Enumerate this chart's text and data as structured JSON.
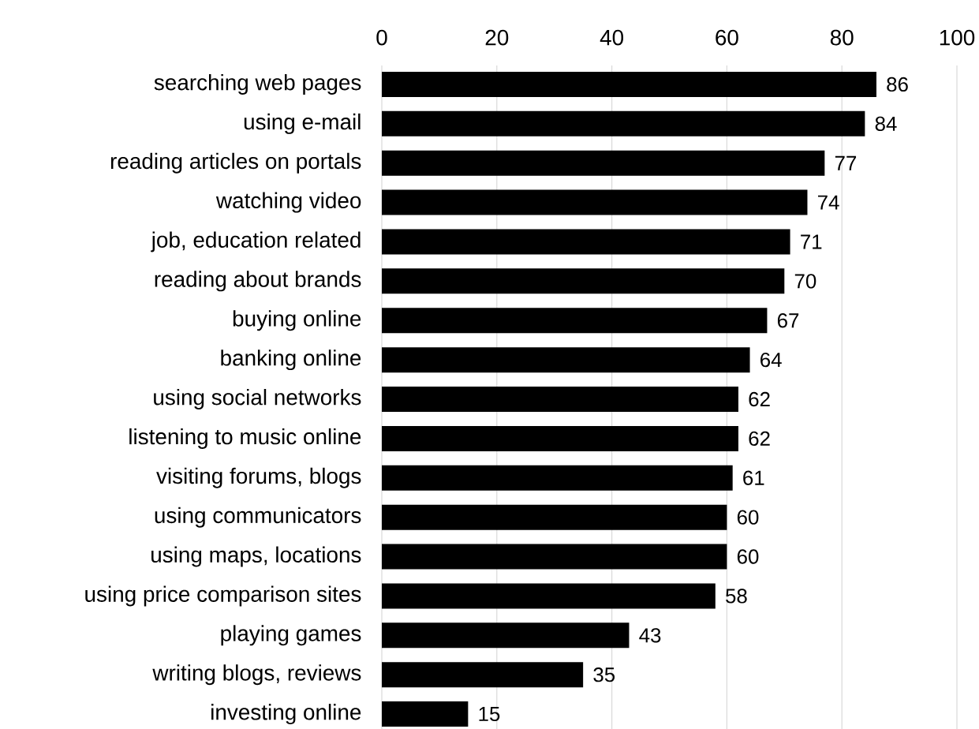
{
  "chart_data": {
    "type": "bar",
    "orientation": "horizontal",
    "categories": [
      "searching web pages",
      "using e-mail",
      "reading articles on portals",
      "watching video",
      "job, education related",
      "reading about brands",
      "buying online",
      "banking online",
      "using social networks",
      "listening to music online",
      "visiting forums, blogs",
      "using communicators",
      "using maps, locations",
      "using price comparison sites",
      "playing games",
      "writing blogs, reviews",
      "investing online"
    ],
    "values": [
      86,
      84,
      77,
      74,
      71,
      70,
      67,
      64,
      62,
      62,
      61,
      60,
      60,
      58,
      43,
      35,
      15
    ],
    "color": "#000000",
    "xlim": [
      0,
      100
    ],
    "xticks": [
      0,
      20,
      40,
      60,
      80,
      100
    ],
    "grid": "x",
    "data_labels": true
  }
}
